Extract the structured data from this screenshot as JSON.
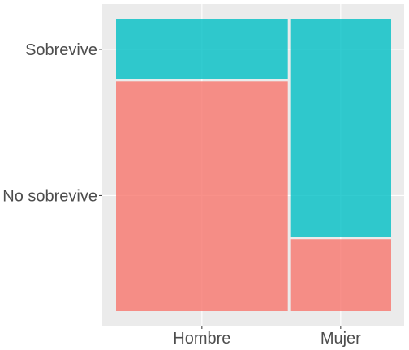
{
  "chart_data": {
    "type": "mosaic",
    "title": "",
    "xlabel": "",
    "ylabel": "",
    "x_categories": [
      "Hombre",
      "Mujer"
    ],
    "y_categories": [
      "No sobrevive",
      "Sobrevive"
    ],
    "x_proportions": [
      0.63,
      0.37
    ],
    "series": [
      {
        "name": "No sobrevive",
        "values": [
          0.79,
          0.25
        ]
      },
      {
        "name": "Sobrevive",
        "values": [
          0.21,
          0.75
        ]
      }
    ],
    "y_tick_labels": [
      "No sobrevive",
      "Sobrevive"
    ],
    "colors": {
      "No sobrevive": "#F8766D",
      "Sobrevive": "#00BFC4",
      "panel_background": "#EBEBEB",
      "gridline": "#FFFFFF",
      "tick_text": "#4D4D4D"
    },
    "grid": true,
    "legend": "none"
  }
}
